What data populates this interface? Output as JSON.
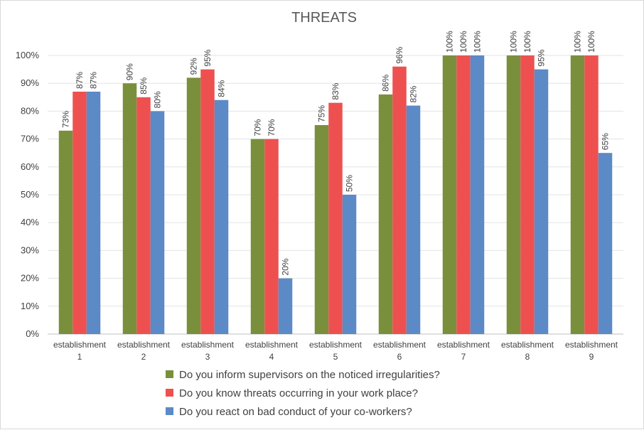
{
  "chart_data": {
    "type": "bar",
    "title": "THREATS",
    "xlabel": "",
    "ylabel": "",
    "ylim": [
      0,
      100
    ],
    "yticks": [
      "0%",
      "10%",
      "20%",
      "30%",
      "40%",
      "50%",
      "60%",
      "70%",
      "80%",
      "90%",
      "100%"
    ],
    "grid": true,
    "legend_position": "bottom",
    "categories": [
      [
        "establishment",
        "1"
      ],
      [
        "establishment",
        "2"
      ],
      [
        "establishment",
        "3"
      ],
      [
        "establishment",
        "4"
      ],
      [
        "establishment",
        "5"
      ],
      [
        "establishment",
        "6"
      ],
      [
        "establishment",
        "7"
      ],
      [
        "establishment",
        "8"
      ],
      [
        "establishment",
        "9"
      ]
    ],
    "series": [
      {
        "name": "Do you inform supervisors on the noticed irregularities?",
        "color": "#7a8f3c",
        "values": [
          73,
          90,
          92,
          70,
          75,
          86,
          100,
          100,
          100
        ],
        "labels": [
          "73%",
          "90%",
          "92%",
          "70%",
          "75%",
          "86%",
          "100%",
          "100%",
          "100%"
        ]
      },
      {
        "name": "Do you know threats occurring in your work place?",
        "color": "#ee5050",
        "values": [
          87,
          85,
          95,
          70,
          83,
          96,
          100,
          100,
          100
        ],
        "labels": [
          "87%",
          "85%",
          "95%",
          "70%",
          "83%",
          "96%",
          "100%",
          "100%",
          "100%"
        ]
      },
      {
        "name": "Do you react on bad conduct of your co-workers?",
        "color": "#5b8ac6",
        "values": [
          87,
          80,
          84,
          20,
          50,
          82,
          100,
          95,
          65
        ],
        "labels": [
          "87%",
          "80%",
          "84%",
          "20%",
          "50%",
          "82%",
          "100%",
          "95%",
          "65%"
        ]
      }
    ]
  }
}
